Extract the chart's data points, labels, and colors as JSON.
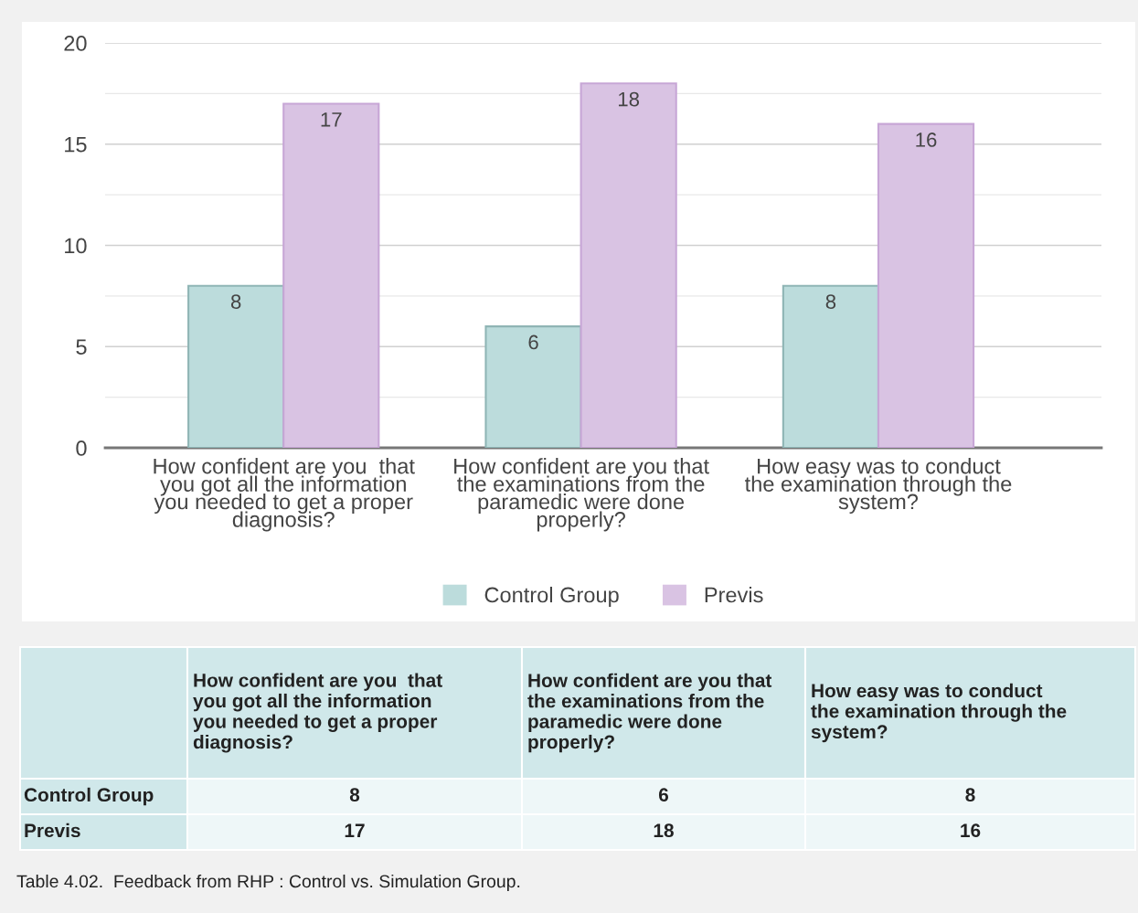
{
  "chart_data": {
    "type": "bar",
    "categories": [
      "How confident are you  that\nyou got all the information\nyou needed to get a proper\ndiagnosis?",
      "How confident are you that\nthe examinations from the\nparamedic were done\nproperly?",
      "How easy was to conduct\nthe examination through the\nsystem?"
    ],
    "series": [
      {
        "name": "Control Group",
        "color": "#bcdcdc",
        "values": [
          8,
          6,
          8
        ],
        "value_labels": [
          "8",
          "6",
          "8"
        ]
      },
      {
        "name": "Previs",
        "color": "#d9c3e3",
        "values": [
          17,
          18,
          16
        ],
        "value_labels": [
          "17",
          "18",
          "16"
        ]
      }
    ],
    "ylim": [
      0,
      20
    ],
    "yticks": [
      0,
      5,
      10,
      15,
      20
    ],
    "grid": "y",
    "legend": "bottom",
    "annotations": [
      "8",
      "6",
      "8",
      "17",
      "18",
      "16",
      "Table 4.02.  Feedback from RHP : Control vs. Simulation Group."
    ]
  }
}
